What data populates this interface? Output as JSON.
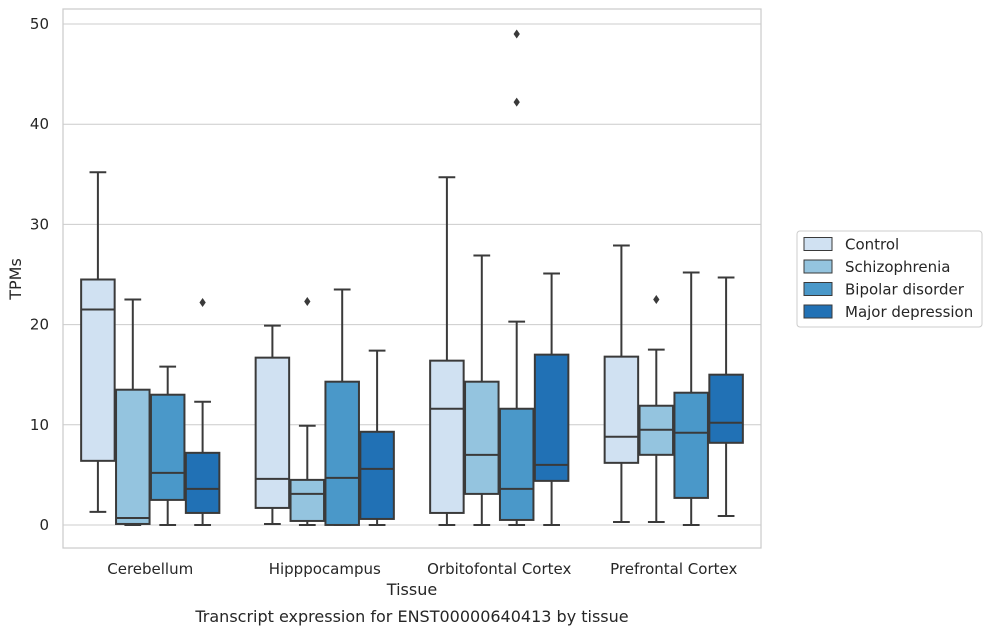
{
  "chart_data": {
    "type": "box",
    "title": "",
    "caption": "Transcript expression for ENST00000640413 by tissue",
    "xlabel": "Tissue",
    "ylabel": "TPMs",
    "ylim": [
      -2.3,
      51.5
    ],
    "yticks": [
      0,
      10,
      20,
      30,
      40,
      50
    ],
    "grid": "horizontal",
    "legend_position": "right",
    "categories": [
      "Cerebellum",
      "Hipppocampus",
      "Orbitofontal Cortex",
      "Prefrontal Cortex"
    ],
    "series": [
      {
        "name": "Control",
        "color": "#d0e1f2",
        "boxes": [
          {
            "whisker_low": 1.3,
            "q1": 6.4,
            "median": 21.5,
            "q3": 24.5,
            "whisker_high": 35.2,
            "outliers": []
          },
          {
            "whisker_low": 0.1,
            "q1": 1.7,
            "median": 4.6,
            "q3": 16.7,
            "whisker_high": 19.9,
            "outliers": []
          },
          {
            "whisker_low": 0.0,
            "q1": 1.2,
            "median": 11.6,
            "q3": 16.4,
            "whisker_high": 34.7,
            "outliers": []
          },
          {
            "whisker_low": 0.3,
            "q1": 6.2,
            "median": 8.8,
            "q3": 16.8,
            "whisker_high": 27.9,
            "outliers": []
          }
        ]
      },
      {
        "name": "Schizophrenia",
        "color": "#94c4df",
        "boxes": [
          {
            "whisker_low": 0.0,
            "q1": 0.1,
            "median": 0.7,
            "q3": 13.5,
            "whisker_high": 22.5,
            "outliers": []
          },
          {
            "whisker_low": 0.0,
            "q1": 0.4,
            "median": 3.1,
            "q3": 4.5,
            "whisker_high": 9.9,
            "outliers": [
              22.3
            ]
          },
          {
            "whisker_low": 0.0,
            "q1": 3.1,
            "median": 7.0,
            "q3": 14.3,
            "whisker_high": 26.9,
            "outliers": []
          },
          {
            "whisker_low": 0.3,
            "q1": 7.0,
            "median": 9.5,
            "q3": 11.9,
            "whisker_high": 17.5,
            "outliers": [
              22.5
            ]
          }
        ]
      },
      {
        "name": "Bipolar disorder",
        "color": "#4a98c9",
        "boxes": [
          {
            "whisker_low": 0.0,
            "q1": 2.5,
            "median": 5.2,
            "q3": 13.0,
            "whisker_high": 15.8,
            "outliers": []
          },
          {
            "whisker_low": 0.0,
            "q1": 0.0,
            "median": 4.7,
            "q3": 14.3,
            "whisker_high": 23.5,
            "outliers": []
          },
          {
            "whisker_low": 0.0,
            "q1": 0.5,
            "median": 3.6,
            "q3": 11.6,
            "whisker_high": 20.3,
            "outliers": [
              49.0,
              42.2
            ]
          },
          {
            "whisker_low": 0.0,
            "q1": 2.7,
            "median": 9.2,
            "q3": 13.2,
            "whisker_high": 25.2,
            "outliers": []
          }
        ]
      },
      {
        "name": "Major depression",
        "color": "#2171b5",
        "boxes": [
          {
            "whisker_low": 0.0,
            "q1": 1.2,
            "median": 3.6,
            "q3": 7.2,
            "whisker_high": 12.3,
            "outliers": [
              22.2
            ]
          },
          {
            "whisker_low": 0.0,
            "q1": 0.6,
            "median": 5.6,
            "q3": 9.3,
            "whisker_high": 17.4,
            "outliers": []
          },
          {
            "whisker_low": 0.0,
            "q1": 4.4,
            "median": 6.0,
            "q3": 17.0,
            "whisker_high": 25.1,
            "outliers": []
          },
          {
            "whisker_low": 0.9,
            "q1": 8.2,
            "median": 10.2,
            "q3": 15.0,
            "whisker_high": 24.7,
            "outliers": []
          }
        ]
      }
    ]
  }
}
